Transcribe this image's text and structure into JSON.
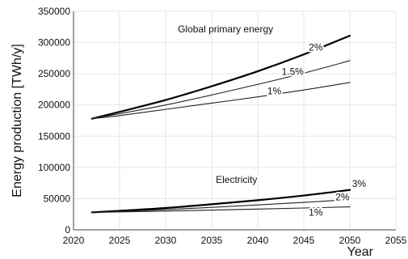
{
  "chart_data": {
    "type": "line",
    "title": "",
    "xlabel": "Year",
    "ylabel": "Energy production [TWh/y]",
    "xlim": [
      2020,
      2055
    ],
    "ylim": [
      0,
      350000
    ],
    "xticks": [
      2020,
      2025,
      2030,
      2035,
      2040,
      2045,
      2050,
      2055
    ],
    "yticks": [
      0,
      50000,
      100000,
      150000,
      200000,
      250000,
      300000,
      350000
    ],
    "grid": true,
    "series": [
      {
        "group": "primary",
        "label": "2%",
        "stroke": "#000000",
        "width": 2.2,
        "points": [
          [
            2022,
            178000
          ],
          [
            2025,
            189000
          ],
          [
            2030,
            208000
          ],
          [
            2035,
            230000
          ],
          [
            2040,
            254000
          ],
          [
            2045,
            281000
          ],
          [
            2050,
            311000
          ]
        ]
      },
      {
        "group": "primary",
        "label": "1.5%",
        "stroke": "#222222",
        "width": 1.1,
        "points": [
          [
            2022,
            178000
          ],
          [
            2025,
            186000
          ],
          [
            2030,
            200000
          ],
          [
            2035,
            216000
          ],
          [
            2040,
            233000
          ],
          [
            2045,
            251000
          ],
          [
            2050,
            271000
          ]
        ]
      },
      {
        "group": "primary",
        "label": "1%",
        "stroke": "#222222",
        "width": 1.1,
        "points": [
          [
            2022,
            178000
          ],
          [
            2025,
            183000
          ],
          [
            2030,
            193000
          ],
          [
            2035,
            203000
          ],
          [
            2040,
            213000
          ],
          [
            2045,
            224000
          ],
          [
            2050,
            236000
          ]
        ]
      },
      {
        "group": "electricity",
        "label": "3%",
        "stroke": "#000000",
        "width": 2.2,
        "points": [
          [
            2022,
            28000
          ],
          [
            2025,
            30500
          ],
          [
            2030,
            35000
          ],
          [
            2035,
            41000
          ],
          [
            2040,
            47500
          ],
          [
            2045,
            55000
          ],
          [
            2050,
            64000
          ]
        ]
      },
      {
        "group": "electricity",
        "label": "2%",
        "stroke": "#222222",
        "width": 1.1,
        "points": [
          [
            2022,
            28000
          ],
          [
            2025,
            29500
          ],
          [
            2030,
            32500
          ],
          [
            2035,
            36000
          ],
          [
            2040,
            40000
          ],
          [
            2045,
            44000
          ],
          [
            2050,
            48500
          ]
        ]
      },
      {
        "group": "electricity",
        "label": "1%",
        "stroke": "#222222",
        "width": 1.1,
        "points": [
          [
            2022,
            28000
          ],
          [
            2025,
            28800
          ],
          [
            2030,
            30000
          ],
          [
            2035,
            31700
          ],
          [
            2040,
            33300
          ],
          [
            2045,
            35000
          ],
          [
            2050,
            36800
          ]
        ]
      }
    ],
    "annotations": [
      {
        "text": "Global primary energy",
        "x": 2036.5,
        "y": 316000
      },
      {
        "text": "2%",
        "x": 2046.3,
        "y": 287000
      },
      {
        "text": "1.5%",
        "x": 2043.8,
        "y": 248000
      },
      {
        "text": "1%",
        "x": 2041.8,
        "y": 217000
      },
      {
        "text": "Electricity",
        "x": 2037.7,
        "y": 75000
      },
      {
        "text": "3%",
        "x": 2051,
        "y": 69000
      },
      {
        "text": "2%",
        "x": 2049.2,
        "y": 47000
      },
      {
        "text": "1%",
        "x": 2046.3,
        "y": 23000
      }
    ]
  }
}
